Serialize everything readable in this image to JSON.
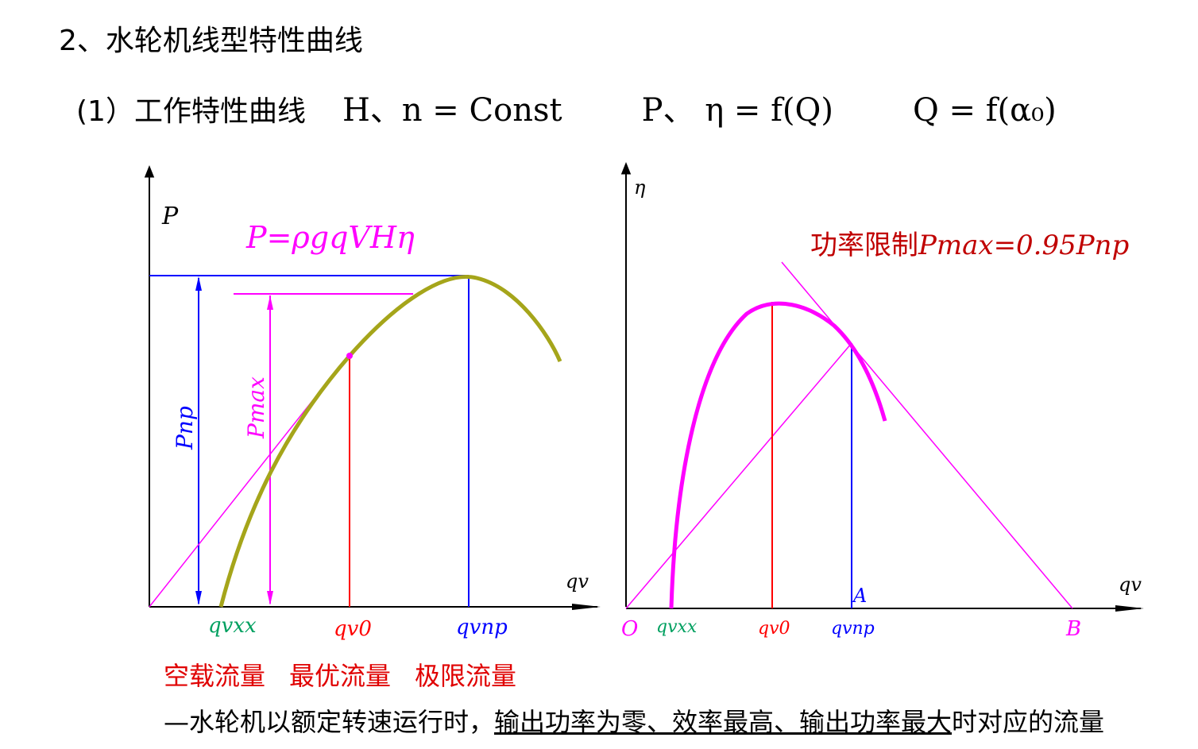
{
  "heading": "2、水轮机线型特性曲线",
  "subheading": {
    "label": "(1）工作特性曲线",
    "cond": "H、n = Const",
    "rel1": "P、 η  =  f(Q)",
    "rel2": "Q  =  f(α₀)"
  },
  "left_chart": {
    "y_axis_label": "P",
    "x_axis_label": "qv",
    "formula": "P=ρgqVHη",
    "dim_pnp": "Pnp",
    "dim_pmax": "Pmax",
    "x_ticks": [
      "qvxx",
      "qv0",
      "qvnp"
    ],
    "colors": {
      "curve": "#a5a51a",
      "blue": "#0000ff",
      "magenta": "#ff00ff",
      "red": "#ff0000",
      "green": "#00a060"
    }
  },
  "right_chart": {
    "y_axis_label": "η",
    "x_axis_label": "qv",
    "power_limit_text": "功率限制",
    "power_limit_formula": "Pmax=0.95Pnp",
    "origin": "O",
    "point_a": "A",
    "point_b": "B",
    "x_ticks": [
      "qvxx",
      "qv0",
      "qvnp"
    ]
  },
  "flow_labels": [
    "空载流量",
    "最优流量",
    "极限流量"
  ],
  "note": {
    "prefix": "—水轮机以额定转速运行时，",
    "underlined": "输出功率为零、效率最高、输出功率最大",
    "suffix": "时对应的流量"
  }
}
